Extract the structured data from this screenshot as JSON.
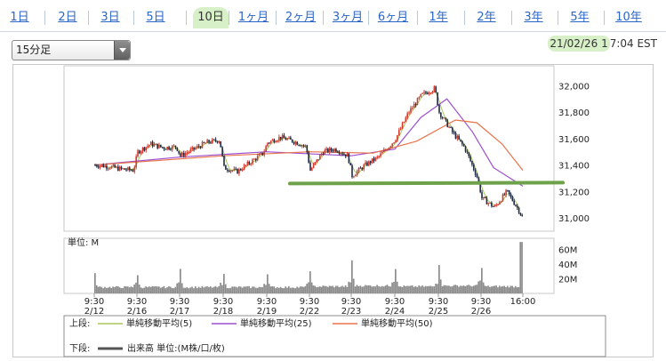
{
  "tabs": [
    {
      "label": "1日"
    },
    {
      "label": "2日"
    },
    {
      "label": "3日"
    },
    {
      "label": "5日"
    },
    {
      "label": "10日",
      "active": true
    },
    {
      "label": "1ヶ月"
    },
    {
      "label": "2ヶ月"
    },
    {
      "label": "3ヶ月"
    },
    {
      "label": "6ヶ月"
    },
    {
      "label": "1年"
    },
    {
      "label": "2年"
    },
    {
      "label": "3年"
    },
    {
      "label": "5年"
    },
    {
      "label": "10年"
    }
  ],
  "interval_select": {
    "value": "15分足"
  },
  "timestamp": {
    "highlighted": "21/02/26 1",
    "rest": "7:04 EST"
  },
  "colors": {
    "up": "#d23a2f",
    "down": "#1f2a44",
    "ma5": "#a8c85a",
    "ma25": "#9b4fd0",
    "ma50": "#e8734a",
    "support": "#6ea24a",
    "volume": "#8c8c8c",
    "tab_active": "#d8f0c8"
  },
  "chart_data": [
    {
      "type": "candlestick",
      "y_ticks": [
        "32,000",
        "31,800",
        "31,600",
        "31,400",
        "31,200",
        "31,000"
      ],
      "ylim": [
        30900,
        32150
      ],
      "x_ticks": [
        {
          "time": "9:30",
          "date": "2/12"
        },
        {
          "time": "9:30",
          "date": "2/16"
        },
        {
          "time": "9:30",
          "date": "2/17"
        },
        {
          "time": "9:30",
          "date": "2/18"
        },
        {
          "time": "9:30",
          "date": "2/19"
        },
        {
          "time": "9:30",
          "date": "2/22"
        },
        {
          "time": "9:30",
          "date": "2/23"
        },
        {
          "time": "9:30",
          "date": "2/24"
        },
        {
          "time": "9:30",
          "date": "2/25"
        },
        {
          "time": "9:30",
          "date": "2/26"
        },
        {
          "time": "16:00",
          "date": ""
        }
      ],
      "close_path": [
        [
          0,
          31400
        ],
        [
          0.3,
          31390
        ],
        [
          0.6,
          31370
        ],
        [
          0.9,
          31360
        ],
        [
          1.0,
          31500
        ],
        [
          1.3,
          31560
        ],
        [
          1.6,
          31530
        ],
        [
          1.9,
          31540
        ],
        [
          2.0,
          31470
        ],
        [
          2.3,
          31520
        ],
        [
          2.6,
          31570
        ],
        [
          2.9,
          31590
        ],
        [
          3.0,
          31380
        ],
        [
          3.3,
          31350
        ],
        [
          3.6,
          31420
        ],
        [
          3.9,
          31490
        ],
        [
          4.0,
          31570
        ],
        [
          4.3,
          31610
        ],
        [
          4.6,
          31580
        ],
        [
          4.9,
          31540
        ],
        [
          5.0,
          31360
        ],
        [
          5.3,
          31500
        ],
        [
          5.6,
          31520
        ],
        [
          5.9,
          31470
        ],
        [
          6.0,
          31320
        ],
        [
          6.3,
          31400
        ],
        [
          6.6,
          31460
        ],
        [
          6.9,
          31560
        ],
        [
          7.0,
          31600
        ],
        [
          7.3,
          31800
        ],
        [
          7.6,
          31930
        ],
        [
          7.9,
          31980
        ],
        [
          8.0,
          31800
        ],
        [
          8.3,
          31650
        ],
        [
          8.6,
          31530
        ],
        [
          8.9,
          31300
        ],
        [
          9.0,
          31150
        ],
        [
          9.3,
          31080
        ],
        [
          9.6,
          31200
        ],
        [
          9.9,
          31050
        ],
        [
          10.0,
          30980
        ]
      ],
      "ma25_path": [
        [
          0,
          31400
        ],
        [
          2,
          31460
        ],
        [
          4,
          31500
        ],
        [
          6,
          31470
        ],
        [
          7,
          31520
        ],
        [
          7.6,
          31760
        ],
        [
          8.2,
          31900
        ],
        [
          8.8,
          31650
        ],
        [
          9.3,
          31380
        ],
        [
          10,
          31240
        ]
      ],
      "ma50_path": [
        [
          0,
          31400
        ],
        [
          3,
          31470
        ],
        [
          5,
          31500
        ],
        [
          6.5,
          31490
        ],
        [
          7.5,
          31580
        ],
        [
          8.4,
          31740
        ],
        [
          8.9,
          31720
        ],
        [
          9.5,
          31560
        ],
        [
          10,
          31360
        ]
      ],
      "support_line": 31260,
      "legend": [
        {
          "label": "単純移動平均(5)",
          "series": "ma5"
        },
        {
          "label": "単純移動平均(25)",
          "series": "ma25"
        },
        {
          "label": "単純移動平均(50)",
          "series": "ma50"
        }
      ],
      "upper_label": "上段:",
      "lower_label": "下段:",
      "volume_legend": "出来高 単位:(M株/口/枚)"
    },
    {
      "type": "bar",
      "title": "単位: M",
      "y_ticks": [
        "60M",
        "40M",
        "20M"
      ],
      "ylim": [
        0,
        75
      ],
      "days": 10,
      "spike_start": [
        22,
        24,
        28,
        25,
        26,
        30,
        40,
        32,
        38,
        30
      ],
      "base": [
        7,
        7,
        7,
        7,
        7,
        8,
        9,
        8,
        9,
        8
      ],
      "final_spike": 70
    }
  ]
}
